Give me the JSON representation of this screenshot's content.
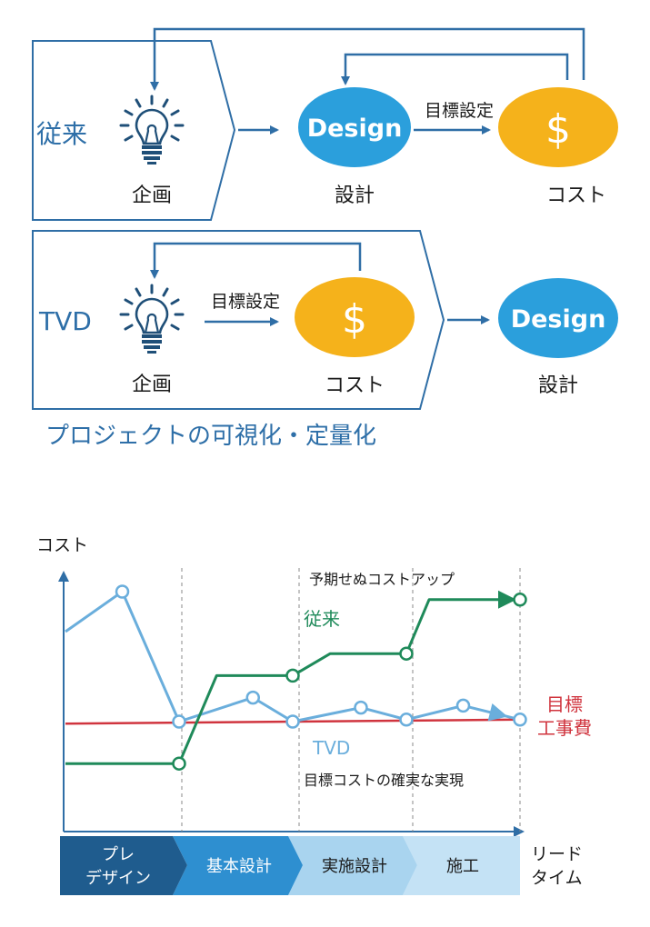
{
  "top": {
    "conventional": {
      "label": "従来",
      "planning_label": "企画",
      "design_badge": "Design",
      "design_label": "設計",
      "goal_label": "目標設定",
      "cost_badge": "$",
      "cost_label": "コスト"
    },
    "tvd": {
      "label": "TVD",
      "planning_label": "企画",
      "goal_label": "目標設定",
      "cost_badge": "$",
      "cost_label": "コスト",
      "design_badge": "Design",
      "design_label": "設計"
    },
    "caption": "プロジェクトの可視化・定量化"
  },
  "colors": {
    "blue_text": "#2e6fa8",
    "arrow": "#2f6ea6",
    "design_fill": "#2b9fdc",
    "cost_fill": "#f5b21b",
    "conventional_line": "#1f8a5a",
    "tvd_line": "#6aaedc",
    "target_line": "#d0343e",
    "phase_dark": "#1f5c8e",
    "phase_mid": "#2e8fd0",
    "phase_light1": "#a9d4ef",
    "phase_light2": "#c4e2f5"
  },
  "chart_data": {
    "type": "line",
    "ylabel": "コスト",
    "xlabel": "リードタイム",
    "phases": [
      "プレデザイン",
      "基本設計",
      "実施設計",
      "施工"
    ],
    "series": [
      {
        "name": "従来",
        "points": [
          [
            -1,
            0.34
          ],
          [
            0,
            0.34
          ],
          [
            0.33,
            0.78
          ],
          [
            1,
            0.78
          ],
          [
            1.33,
            0.89
          ],
          [
            2,
            0.89
          ],
          [
            2.2,
            1.16
          ],
          [
            3,
            1.16
          ]
        ]
      },
      {
        "name": "TVD",
        "points": [
          [
            -1,
            1.0
          ],
          [
            -0.5,
            1.2
          ],
          [
            0,
            0.55
          ],
          [
            0.65,
            0.67
          ],
          [
            1,
            0.55
          ],
          [
            1.6,
            0.62
          ],
          [
            2,
            0.56
          ],
          [
            2.5,
            0.63
          ],
          [
            3,
            0.56
          ]
        ]
      },
      {
        "name": "目標工事費",
        "points": [
          [
            -1,
            0.54
          ],
          [
            3,
            0.56
          ]
        ]
      }
    ],
    "annotations": {
      "cost_up": "予期せぬコストアップ",
      "conventional": "従来",
      "target_top": "目標",
      "target_bottom": "工事費",
      "tvd": "TVD",
      "realization": "目標コストの確実な実現"
    },
    "lead_time_top": "リード",
    "lead_time_bottom": "タイム",
    "phase_labels": {
      "pre_top": "プレ",
      "pre_bottom": "デザイン",
      "basic": "基本設計",
      "detail": "実施設計",
      "construction": "施工"
    }
  }
}
